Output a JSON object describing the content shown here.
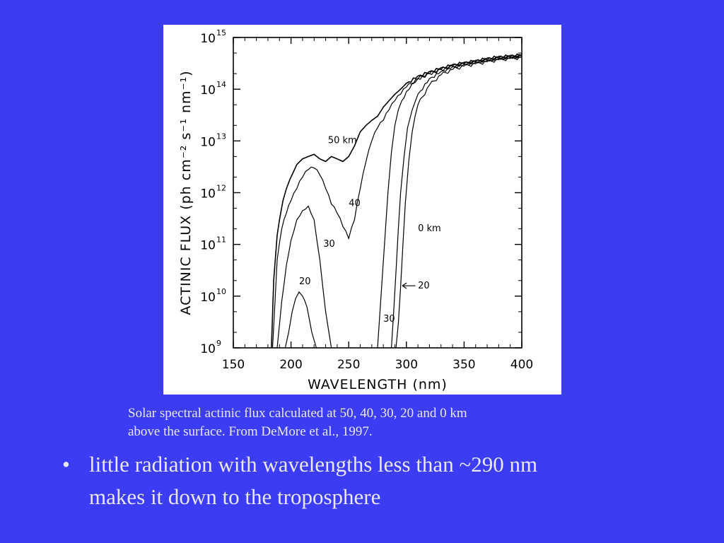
{
  "slide": {
    "caption_lines": [
      "Solar spectral actinic flux calculated at 50, 40, 30, 20 and 0 km",
      "above the surface.  From DeMore et al., 1997."
    ],
    "bullet_symbol": "•",
    "bullet_lines": [
      "little radiation with wavelengths less than ~290 nm",
      "makes it down to the troposphere"
    ],
    "colors": {
      "background": "#3c3cf5",
      "text": "#e8e8f8",
      "figure_bg": "#ffffff",
      "ink": "#000000"
    }
  },
  "chart_data": {
    "type": "line",
    "title": "",
    "xlabel": "WAVELENGTH (nm)",
    "ylabel": "ACTINIC FLUX (ph cm⁻² s⁻¹ nm⁻¹)",
    "y_scale": "log",
    "xlim": [
      150,
      400
    ],
    "ylim": [
      1000000000.0,
      1000000000000000.0
    ],
    "x_ticks": [
      150,
      200,
      250,
      300,
      350,
      400
    ],
    "y_ticks": [
      {
        "base": "10",
        "exp": "9",
        "value": 1000000000.0
      },
      {
        "base": "10",
        "exp": "10",
        "value": 10000000000.0
      },
      {
        "base": "10",
        "exp": "11",
        "value": 100000000000.0
      },
      {
        "base": "10",
        "exp": "12",
        "value": 1000000000000.0
      },
      {
        "base": "10",
        "exp": "13",
        "value": 10000000000000.0
      },
      {
        "base": "10",
        "exp": "14",
        "value": 100000000000000.0
      },
      {
        "base": "10",
        "exp": "15",
        "value": 1000000000000000.0
      }
    ],
    "grid": false,
    "series": [
      {
        "name": "50 km",
        "x": [
          183,
          185,
          188,
          190,
          193,
          196,
          199,
          202,
          205,
          210,
          215,
          220,
          225,
          230,
          235,
          240,
          245,
          250,
          255,
          260,
          265,
          270,
          275,
          280,
          285,
          290,
          295,
          300,
          310,
          320,
          330,
          340,
          350,
          360,
          370,
          380,
          390,
          400
        ],
        "y": [
          1000000000.0,
          20000000000.0,
          150000000000.0,
          300000000000.0,
          700000000000.0,
          1200000000000.0,
          1800000000000.0,
          2500000000000.0,
          3500000000000.0,
          4500000000000.0,
          5000000000000.0,
          5500000000000.0,
          4500000000000.0,
          4000000000000.0,
          5000000000000.0,
          4500000000000.0,
          4000000000000.0,
          5000000000000.0,
          8000000000000.0,
          15000000000000.0,
          20000000000000.0,
          25000000000000.0,
          30000000000000.0,
          45000000000000.0,
          60000000000000.0,
          80000000000000.0,
          100000000000000.0,
          130000000000000.0,
          180000000000000.0,
          220000000000000.0,
          260000000000000.0,
          300000000000000.0,
          330000000000000.0,
          360000000000000.0,
          400000000000000.0,
          430000000000000.0,
          450000000000000.0,
          470000000000000.0
        ]
      },
      {
        "name": "40",
        "x": [
          184,
          188,
          192,
          196,
          200,
          205,
          210,
          215,
          220,
          225,
          230,
          235,
          240,
          245,
          250,
          255,
          260,
          265,
          270,
          275,
          280,
          285,
          290,
          295,
          300,
          310,
          320,
          330,
          340,
          350,
          360,
          370,
          380,
          390,
          400
        ],
        "y": [
          1000000000.0,
          50000000000.0,
          200000000000.0,
          400000000000.0,
          700000000000.0,
          1200000000000.0,
          2000000000000.0,
          2800000000000.0,
          3000000000000.0,
          2200000000000.0,
          1200000000000.0,
          600000000000.0,
          400000000000.0,
          220000000000.0,
          130000000000.0,
          300000000000.0,
          1200000000000.0,
          4000000000000.0,
          10000000000000.0,
          18000000000000.0,
          25000000000000.0,
          40000000000000.0,
          60000000000000.0,
          80000000000000.0,
          110000000000000.0,
          160000000000000.0,
          200000000000000.0,
          240000000000000.0,
          280000000000000.0,
          310000000000000.0,
          340000000000000.0,
          370000000000000.0,
          400000000000000.0,
          420000000000000.0,
          440000000000000.0
        ]
      },
      {
        "name": "30",
        "x": [
          188,
          192,
          196,
          200,
          205,
          210,
          215,
          220,
          225,
          230,
          235
        ],
        "y": [
          1000000000.0,
          8000000000.0,
          40000000000.0,
          120000000000.0,
          300000000000.0,
          450000000000.0,
          550000000000.0,
          300000000000.0,
          50000000000.0,
          5000000000.0,
          1000000000.0
        ]
      },
      {
        "name": "20",
        "x": [
          195,
          198,
          201,
          204,
          207,
          210,
          214,
          218,
          222
        ],
        "y": [
          1000000000.0,
          2000000000.0,
          5000000000.0,
          9000000000.0,
          12000000000.0,
          10000000000.0,
          6000000000.0,
          2000000000.0,
          1000000000.0
        ]
      },
      {
        "name": "30",
        "x": [
          275,
          278,
          281,
          284,
          287,
          290,
          293,
          296,
          300,
          305,
          310,
          320,
          330,
          340,
          350,
          360,
          370,
          380,
          390,
          400
        ],
        "y": [
          1000000000.0,
          10000000000.0,
          100000000000.0,
          1000000000000.0,
          6000000000000.0,
          20000000000000.0,
          40000000000000.0,
          60000000000000.0,
          90000000000000.0,
          130000000000000.0,
          160000000000000.0,
          200000000000000.0,
          240000000000000.0,
          280000000000000.0,
          310000000000000.0,
          340000000000000.0,
          370000000000000.0,
          400000000000000.0,
          420000000000000.0,
          440000000000000.0
        ]
      },
      {
        "name": "20",
        "x": [
          287,
          289,
          291,
          293,
          295,
          298,
          301,
          305,
          310,
          320,
          330,
          340,
          350,
          360,
          370,
          380,
          390,
          400
        ],
        "y": [
          1000000000.0,
          5000000000.0,
          30000000000.0,
          200000000000.0,
          1000000000000.0,
          5000000000000.0,
          18000000000000.0,
          40000000000000.0,
          80000000000000.0,
          160000000000000.0,
          220000000000000.0,
          270000000000000.0,
          300000000000000.0,
          330000000000000.0,
          360000000000000.0,
          390000000000000.0,
          410000000000000.0,
          430000000000000.0
        ]
      },
      {
        "name": "0 km",
        "x": [
          291,
          293,
          295,
          297,
          299,
          302,
          305,
          310,
          320,
          330,
          340,
          350,
          360,
          370,
          380,
          390,
          400
        ],
        "y": [
          1000000000.0,
          3000000000.0,
          15000000000.0,
          100000000000.0,
          600000000000.0,
          4000000000000.0,
          15000000000000.0,
          50000000000000.0,
          120000000000000.0,
          190000000000000.0,
          240000000000000.0,
          280000000000000.0,
          310000000000000.0,
          340000000000000.0,
          370000000000000.0,
          390000000000000.0,
          410000000000000.0
        ]
      }
    ],
    "annotations": [
      {
        "text": "50 km",
        "x": 232,
        "y": 9000000000000.0
      },
      {
        "text": "40",
        "x": 250,
        "y": 550000000000.0
      },
      {
        "text": "30",
        "x": 228,
        "y": 90000000000.0
      },
      {
        "text": "20",
        "x": 207,
        "y": 17000000000.0
      },
      {
        "text": "0 km",
        "x": 310,
        "y": 180000000000.0
      },
      {
        "text": "20",
        "x": 310,
        "y": 14000000000.0
      },
      {
        "text": "30",
        "x": 280,
        "y": 3200000000.0
      }
    ]
  }
}
